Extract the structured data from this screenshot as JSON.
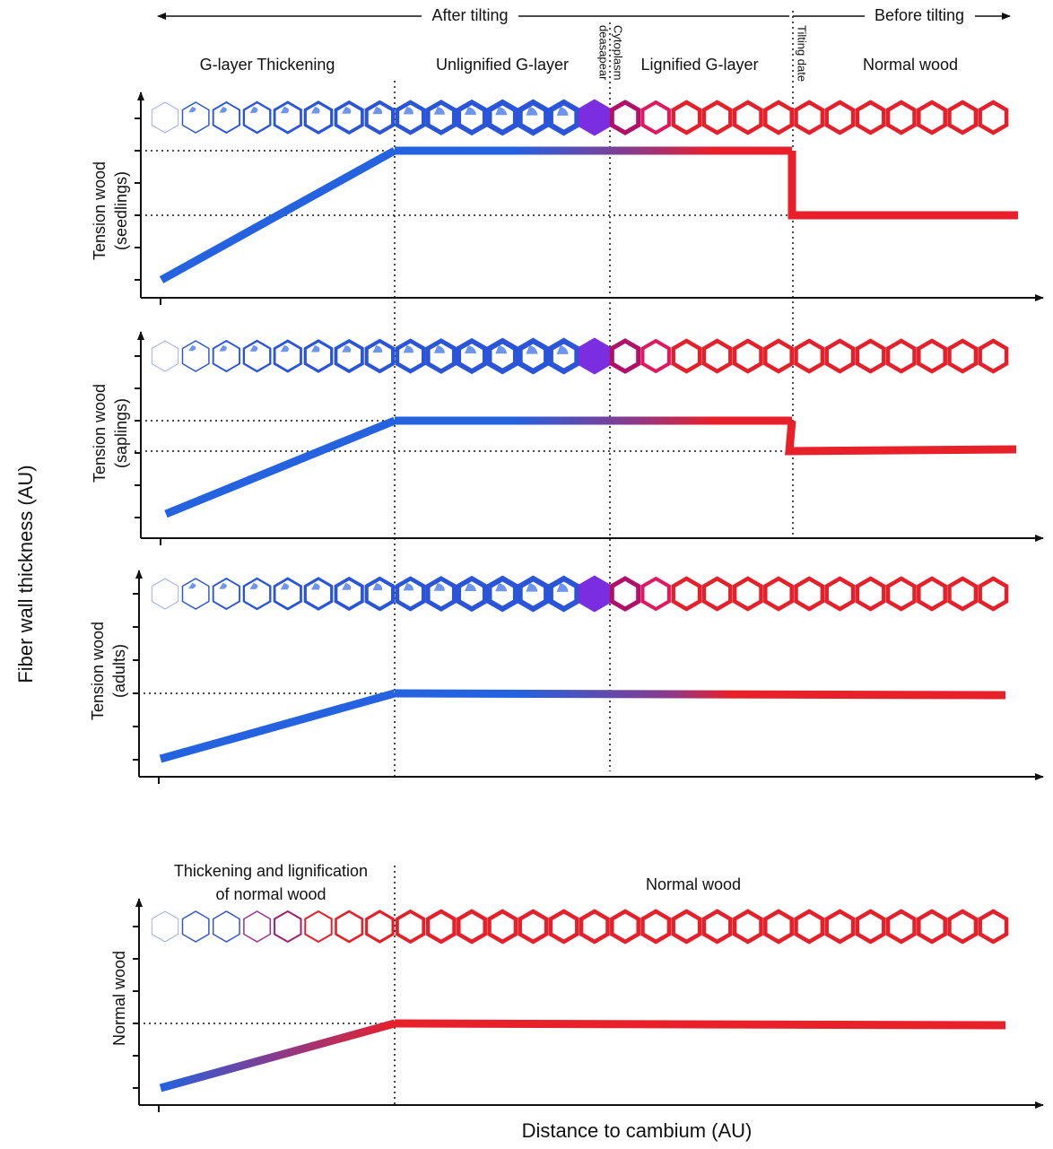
{
  "header": {
    "after_tilting": "After tilting",
    "before_tilting": "Before tilting"
  },
  "zones": [
    "G-layer Thickening",
    "Unlignified G-layer",
    "Lignified G-layer",
    "Normal wood"
  ],
  "events": {
    "cytoplasm": [
      "Cytoplasm",
      "deasapear"
    ],
    "tilting": "Tilting date"
  },
  "panels": [
    {
      "label": [
        "Tension wood",
        "(seedlings)"
      ]
    },
    {
      "label": [
        "Tension wood",
        "(saplings)"
      ]
    },
    {
      "label": [
        "Tension wood",
        "(adults)"
      ]
    },
    {
      "label": [
        "Normal wood"
      ]
    }
  ],
  "bottom": {
    "zone_left": [
      "Thickening and lignification",
      "of normal wood"
    ],
    "zone_right": "Normal wood"
  },
  "y_axis_label": "Fiber wall thickness (AU)",
  "x_axis_label": "Distance to cambium (AU)"
}
